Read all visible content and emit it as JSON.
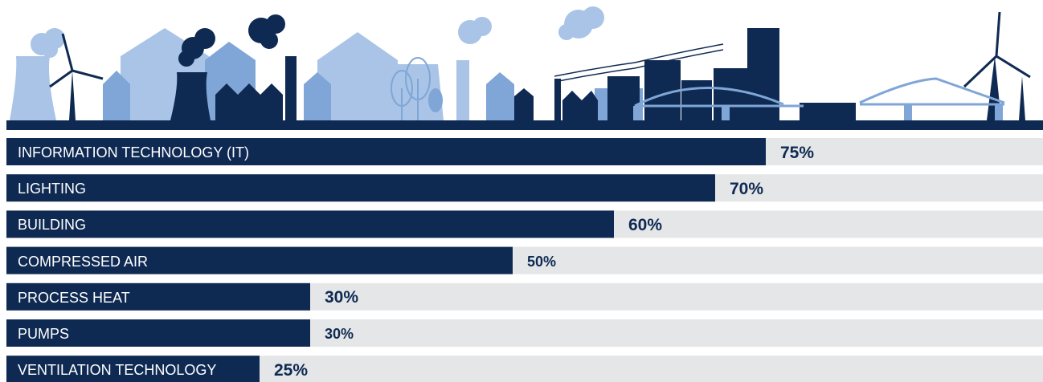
{
  "colors": {
    "bar": "#0f2a52",
    "track": "#e4e6e7",
    "light": "#a9c4e6",
    "mid": "#7fa6d6",
    "dark": "#0f2a52"
  },
  "illustration": {
    "icon": "city-skyline-icon"
  },
  "chart_data": {
    "type": "bar",
    "orientation": "horizontal",
    "categories": [
      "INFORMATION TECHNOLOGY (IT)",
      "LIGHTING",
      "BUILDING",
      "COMPRESSED AIR",
      "PROCESS HEAT",
      "PUMPS",
      "VENTILATION TECHNOLOGY"
    ],
    "values": [
      75,
      70,
      60,
      50,
      30,
      30,
      25
    ],
    "value_labels": [
      "75%",
      "70%",
      "60%",
      "50%",
      "30%",
      "30%",
      "25%"
    ],
    "xlim": [
      0,
      100
    ],
    "grid": false,
    "legend": "none"
  }
}
